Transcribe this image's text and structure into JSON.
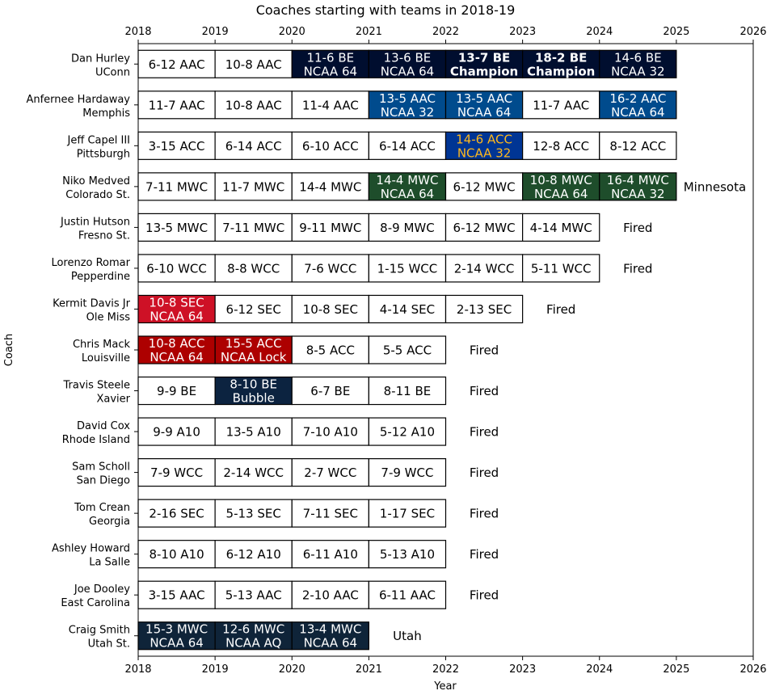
{
  "chart_data": {
    "type": "table",
    "title": "Coaches starting with teams in 2018-19",
    "xlabel": "Year",
    "ylabel": "Coach",
    "xlim": [
      2018,
      2026
    ],
    "xticks": [
      "2018",
      "2019",
      "2020",
      "2021",
      "2022",
      "2023",
      "2024",
      "2025",
      "2026"
    ],
    "coaches": [
      {
        "name": "Dan Hurley",
        "team": "UConn",
        "outcome": "",
        "seasons": [
          {
            "text": [
              "6-12 AAC"
            ],
            "fill": "#ffffff",
            "color": "#000000",
            "bold": false
          },
          {
            "text": [
              "10-8 AAC"
            ],
            "fill": "#ffffff",
            "color": "#000000",
            "bold": false
          },
          {
            "text": [
              "11-6 BE",
              "NCAA 64"
            ],
            "fill": "#000e2f",
            "color": "#ffffff",
            "bold": false
          },
          {
            "text": [
              "13-6 BE",
              "NCAA 64"
            ],
            "fill": "#000e2f",
            "color": "#ffffff",
            "bold": false
          },
          {
            "text": [
              "13-7 BE",
              "Champion"
            ],
            "fill": "#000e2f",
            "color": "#ffffff",
            "bold": true
          },
          {
            "text": [
              "18-2 BE",
              "Champion"
            ],
            "fill": "#000e2f",
            "color": "#ffffff",
            "bold": true
          },
          {
            "text": [
              "14-6 BE",
              "NCAA 32"
            ],
            "fill": "#000e2f",
            "color": "#ffffff",
            "bold": false
          }
        ]
      },
      {
        "name": "Anfernee Hardaway",
        "team": "Memphis",
        "outcome": "",
        "seasons": [
          {
            "text": [
              "11-7 AAC"
            ],
            "fill": "#ffffff",
            "color": "#000000",
            "bold": false
          },
          {
            "text": [
              "10-8 AAC"
            ],
            "fill": "#ffffff",
            "color": "#000000",
            "bold": false
          },
          {
            "text": [
              "11-4 AAC"
            ],
            "fill": "#ffffff",
            "color": "#000000",
            "bold": false
          },
          {
            "text": [
              "13-5 AAC",
              "NCAA 32"
            ],
            "fill": "#004b8d",
            "color": "#ffffff",
            "bold": false
          },
          {
            "text": [
              "13-5 AAC",
              "NCAA 64"
            ],
            "fill": "#004b8d",
            "color": "#ffffff",
            "bold": false
          },
          {
            "text": [
              "11-7 AAC"
            ],
            "fill": "#ffffff",
            "color": "#000000",
            "bold": false
          },
          {
            "text": [
              "16-2 AAC",
              "NCAA 64"
            ],
            "fill": "#004b8d",
            "color": "#ffffff",
            "bold": false
          }
        ]
      },
      {
        "name": "Jeff Capel III",
        "team": "Pittsburgh",
        "outcome": "",
        "seasons": [
          {
            "text": [
              "3-15 ACC"
            ],
            "fill": "#ffffff",
            "color": "#000000",
            "bold": false
          },
          {
            "text": [
              "6-14 ACC"
            ],
            "fill": "#ffffff",
            "color": "#000000",
            "bold": false
          },
          {
            "text": [
              "6-10 ACC"
            ],
            "fill": "#ffffff",
            "color": "#000000",
            "bold": false
          },
          {
            "text": [
              "6-14 ACC"
            ],
            "fill": "#ffffff",
            "color": "#000000",
            "bold": false
          },
          {
            "text": [
              "14-6 ACC",
              "NCAA 32"
            ],
            "fill": "#003594",
            "color": "#ffb81c",
            "bold": false
          },
          {
            "text": [
              "12-8 ACC"
            ],
            "fill": "#ffffff",
            "color": "#000000",
            "bold": false
          },
          {
            "text": [
              "8-12 ACC"
            ],
            "fill": "#ffffff",
            "color": "#000000",
            "bold": false
          }
        ]
      },
      {
        "name": "Niko Medved",
        "team": "Colorado St.",
        "outcome": "Minnesota",
        "seasons": [
          {
            "text": [
              "7-11 MWC"
            ],
            "fill": "#ffffff",
            "color": "#000000",
            "bold": false
          },
          {
            "text": [
              "11-7 MWC"
            ],
            "fill": "#ffffff",
            "color": "#000000",
            "bold": false
          },
          {
            "text": [
              "14-4 MWC"
            ],
            "fill": "#ffffff",
            "color": "#000000",
            "bold": false
          },
          {
            "text": [
              "14-4 MWC",
              "NCAA 64"
            ],
            "fill": "#1e4d2b",
            "color": "#ffffff",
            "bold": false
          },
          {
            "text": [
              "6-12 MWC"
            ],
            "fill": "#ffffff",
            "color": "#000000",
            "bold": false
          },
          {
            "text": [
              "10-8 MWC",
              "NCAA 64"
            ],
            "fill": "#1e4d2b",
            "color": "#ffffff",
            "bold": false
          },
          {
            "text": [
              "16-4 MWC",
              "NCAA 32"
            ],
            "fill": "#1e4d2b",
            "color": "#ffffff",
            "bold": false
          }
        ]
      },
      {
        "name": "Justin Hutson",
        "team": "Fresno St.",
        "outcome": "Fired",
        "seasons": [
          {
            "text": [
              "13-5 MWC"
            ],
            "fill": "#ffffff",
            "color": "#000000",
            "bold": false
          },
          {
            "text": [
              "7-11 MWC"
            ],
            "fill": "#ffffff",
            "color": "#000000",
            "bold": false
          },
          {
            "text": [
              "9-11 MWC"
            ],
            "fill": "#ffffff",
            "color": "#000000",
            "bold": false
          },
          {
            "text": [
              "8-9 MWC"
            ],
            "fill": "#ffffff",
            "color": "#000000",
            "bold": false
          },
          {
            "text": [
              "6-12 MWC"
            ],
            "fill": "#ffffff",
            "color": "#000000",
            "bold": false
          },
          {
            "text": [
              "4-14 MWC"
            ],
            "fill": "#ffffff",
            "color": "#000000",
            "bold": false
          }
        ]
      },
      {
        "name": "Lorenzo Romar",
        "team": "Pepperdine",
        "outcome": "Fired",
        "seasons": [
          {
            "text": [
              "6-10 WCC"
            ],
            "fill": "#ffffff",
            "color": "#000000",
            "bold": false
          },
          {
            "text": [
              "8-8 WCC"
            ],
            "fill": "#ffffff",
            "color": "#000000",
            "bold": false
          },
          {
            "text": [
              "7-6 WCC"
            ],
            "fill": "#ffffff",
            "color": "#000000",
            "bold": false
          },
          {
            "text": [
              "1-15 WCC"
            ],
            "fill": "#ffffff",
            "color": "#000000",
            "bold": false
          },
          {
            "text": [
              "2-14 WCC"
            ],
            "fill": "#ffffff",
            "color": "#000000",
            "bold": false
          },
          {
            "text": [
              "5-11 WCC"
            ],
            "fill": "#ffffff",
            "color": "#000000",
            "bold": false
          }
        ]
      },
      {
        "name": "Kermit Davis Jr",
        "team": "Ole Miss",
        "outcome": "Fired",
        "seasons": [
          {
            "text": [
              "10-8 SEC",
              "NCAA 64"
            ],
            "fill": "#ce1126",
            "color": "#ffffff",
            "bold": false
          },
          {
            "text": [
              "6-12 SEC"
            ],
            "fill": "#ffffff",
            "color": "#000000",
            "bold": false
          },
          {
            "text": [
              "10-8 SEC"
            ],
            "fill": "#ffffff",
            "color": "#000000",
            "bold": false
          },
          {
            "text": [
              "4-14 SEC"
            ],
            "fill": "#ffffff",
            "color": "#000000",
            "bold": false
          },
          {
            "text": [
              "2-13 SEC"
            ],
            "fill": "#ffffff",
            "color": "#000000",
            "bold": false
          }
        ]
      },
      {
        "name": "Chris Mack",
        "team": "Louisville",
        "outcome": "Fired",
        "seasons": [
          {
            "text": [
              "10-8 ACC",
              "NCAA 64"
            ],
            "fill": "#ad0000",
            "color": "#ffffff",
            "bold": false
          },
          {
            "text": [
              "15-5 ACC",
              "NCAA Lock"
            ],
            "fill": "#ad0000",
            "color": "#ffffff",
            "bold": false
          },
          {
            "text": [
              "8-5 ACC"
            ],
            "fill": "#ffffff",
            "color": "#000000",
            "bold": false
          },
          {
            "text": [
              "5-5 ACC"
            ],
            "fill": "#ffffff",
            "color": "#000000",
            "bold": false
          }
        ]
      },
      {
        "name": "Travis Steele",
        "team": "Xavier",
        "outcome": "Fired",
        "seasons": [
          {
            "text": [
              "9-9 BE"
            ],
            "fill": "#ffffff",
            "color": "#000000",
            "bold": false
          },
          {
            "text": [
              "8-10 BE",
              "Bubble"
            ],
            "fill": "#0c2340",
            "color": "#ffffff",
            "bold": false
          },
          {
            "text": [
              "6-7 BE"
            ],
            "fill": "#ffffff",
            "color": "#000000",
            "bold": false
          },
          {
            "text": [
              "8-11 BE"
            ],
            "fill": "#ffffff",
            "color": "#000000",
            "bold": false
          }
        ]
      },
      {
        "name": "David Cox",
        "team": "Rhode Island",
        "outcome": "Fired",
        "seasons": [
          {
            "text": [
              "9-9 A10"
            ],
            "fill": "#ffffff",
            "color": "#000000",
            "bold": false
          },
          {
            "text": [
              "13-5 A10"
            ],
            "fill": "#ffffff",
            "color": "#000000",
            "bold": false
          },
          {
            "text": [
              "7-10 A10"
            ],
            "fill": "#ffffff",
            "color": "#000000",
            "bold": false
          },
          {
            "text": [
              "5-12 A10"
            ],
            "fill": "#ffffff",
            "color": "#000000",
            "bold": false
          }
        ]
      },
      {
        "name": "Sam Scholl",
        "team": "San Diego",
        "outcome": "Fired",
        "seasons": [
          {
            "text": [
              "7-9 WCC"
            ],
            "fill": "#ffffff",
            "color": "#000000",
            "bold": false
          },
          {
            "text": [
              "2-14 WCC"
            ],
            "fill": "#ffffff",
            "color": "#000000",
            "bold": false
          },
          {
            "text": [
              "2-7 WCC"
            ],
            "fill": "#ffffff",
            "color": "#000000",
            "bold": false
          },
          {
            "text": [
              "7-9 WCC"
            ],
            "fill": "#ffffff",
            "color": "#000000",
            "bold": false
          }
        ]
      },
      {
        "name": "Tom Crean",
        "team": "Georgia",
        "outcome": "Fired",
        "seasons": [
          {
            "text": [
              "2-16 SEC"
            ],
            "fill": "#ffffff",
            "color": "#000000",
            "bold": false
          },
          {
            "text": [
              "5-13 SEC"
            ],
            "fill": "#ffffff",
            "color": "#000000",
            "bold": false
          },
          {
            "text": [
              "7-11 SEC"
            ],
            "fill": "#ffffff",
            "color": "#000000",
            "bold": false
          },
          {
            "text": [
              "1-17 SEC"
            ],
            "fill": "#ffffff",
            "color": "#000000",
            "bold": false
          }
        ]
      },
      {
        "name": "Ashley Howard",
        "team": "La Salle",
        "outcome": "Fired",
        "seasons": [
          {
            "text": [
              "8-10 A10"
            ],
            "fill": "#ffffff",
            "color": "#000000",
            "bold": false
          },
          {
            "text": [
              "6-12 A10"
            ],
            "fill": "#ffffff",
            "color": "#000000",
            "bold": false
          },
          {
            "text": [
              "6-11 A10"
            ],
            "fill": "#ffffff",
            "color": "#000000",
            "bold": false
          },
          {
            "text": [
              "5-13 A10"
            ],
            "fill": "#ffffff",
            "color": "#000000",
            "bold": false
          }
        ]
      },
      {
        "name": "Joe Dooley",
        "team": "East Carolina",
        "outcome": "Fired",
        "seasons": [
          {
            "text": [
              "3-15 AAC"
            ],
            "fill": "#ffffff",
            "color": "#000000",
            "bold": false
          },
          {
            "text": [
              "5-13 AAC"
            ],
            "fill": "#ffffff",
            "color": "#000000",
            "bold": false
          },
          {
            "text": [
              "2-10 AAC"
            ],
            "fill": "#ffffff",
            "color": "#000000",
            "bold": false
          },
          {
            "text": [
              "6-11 AAC"
            ],
            "fill": "#ffffff",
            "color": "#000000",
            "bold": false
          }
        ]
      },
      {
        "name": "Craig Smith",
        "team": "Utah St.",
        "outcome": "Utah",
        "seasons": [
          {
            "text": [
              "15-3 MWC",
              "NCAA 64"
            ],
            "fill": "#0f2439",
            "color": "#ffffff",
            "bold": false
          },
          {
            "text": [
              "12-6 MWC",
              "NCAA AQ"
            ],
            "fill": "#0f2439",
            "color": "#ffffff",
            "bold": false
          },
          {
            "text": [
              "13-4 MWC",
              "NCAA 64"
            ],
            "fill": "#0f2439",
            "color": "#ffffff",
            "bold": false
          }
        ]
      }
    ]
  }
}
